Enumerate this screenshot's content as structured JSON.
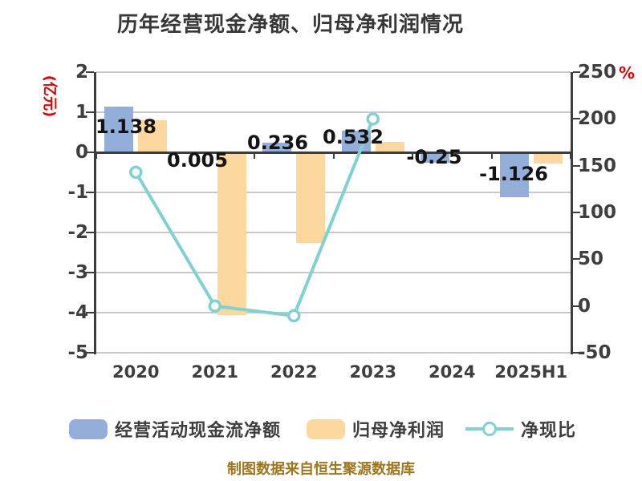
{
  "chart_data": {
    "type": "bar",
    "combo": "bar+line",
    "title": "历年经营现金净额、归母净利润情况",
    "categories": [
      "2020",
      "2021",
      "2022",
      "2023",
      "2024",
      "2025H1"
    ],
    "series": [
      {
        "name": "经营活动现金流净额",
        "type": "bar",
        "axis": "left",
        "color": "#93afd9",
        "values": [
          1.138,
          0.005,
          0.236,
          0.532,
          -0.25,
          -1.126
        ]
      },
      {
        "name": "归母净利润",
        "type": "bar",
        "axis": "left",
        "color": "#fcd79e",
        "values": [
          0.8,
          -4.05,
          -2.25,
          0.27,
          -0.02,
          -0.27
        ]
      },
      {
        "name": "净现比",
        "type": "line",
        "axis": "right",
        "color": "#7fd2d1",
        "values": [
          143,
          -0.1,
          -10.5,
          200,
          null,
          null
        ]
      }
    ],
    "bar_labels": [
      "1.138",
      "0.005",
      "0.236",
      "0.532",
      "-0.25",
      "-1.126"
    ],
    "left_axis": {
      "unit": "(亿元)",
      "ticks": [
        2,
        1,
        0,
        -1,
        -2,
        -3,
        -4,
        -5
      ],
      "min": -5,
      "max": 2,
      "unit_color": "#e60000"
    },
    "right_axis": {
      "unit": "%",
      "ticks": [
        250,
        200,
        150,
        100,
        50,
        0,
        -50
      ],
      "min": -50,
      "max": 250,
      "unit_color": "#e60000"
    },
    "grid": true,
    "legend_position": "bottom"
  },
  "footer": {
    "source_text": "制图数据来自恒生聚源数据库"
  }
}
